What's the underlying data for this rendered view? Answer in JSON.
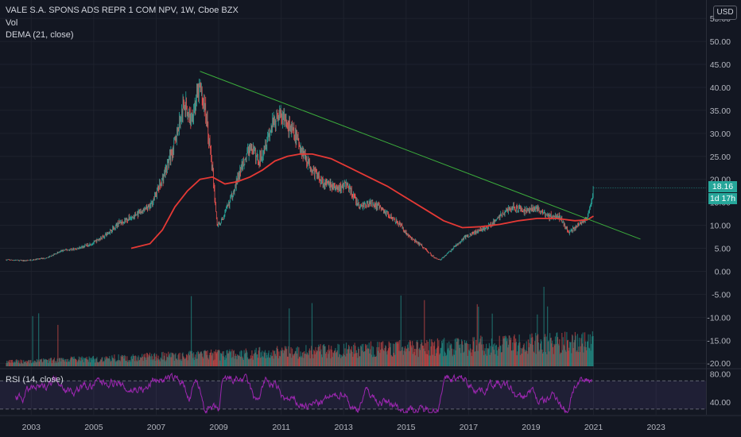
{
  "legend": {
    "symbol": "VALE S.A. SPONS ADS REPR 1 COM NPV, 1W, Cboe BZX",
    "vol": "Vol",
    "dema": "DEMA (21, close)",
    "rsi": "RSI (14, close)"
  },
  "price_axis": {
    "currency": "USD",
    "last_price": "18.16",
    "countdown": "1d 17h"
  },
  "colors": {
    "background": "#131722",
    "up": "#26a69a",
    "down": "#ef5350",
    "trendline": "#3cae3c",
    "dema": "#e53935",
    "rsi": "#9c27b0"
  },
  "chart_data": [
    {
      "type": "candlestick",
      "title": "VALE S.A. SPONS ADS REPR 1 COM NPV, 1W, Cboe BZX",
      "interval": "1W",
      "x_ticks": [
        "2003",
        "2005",
        "2007",
        "2009",
        "2011",
        "2013",
        "2015",
        "2017",
        "2019",
        "2021",
        "2023"
      ],
      "y_ticks": [
        "55.00",
        "50.00",
        "45.00",
        "40.00",
        "35.00",
        "30.00",
        "25.00",
        "20.00",
        "15.00",
        "10.00",
        "5.00",
        "0.00",
        "-5.00",
        "-10.00",
        "-15.00",
        "-20.00"
      ],
      "ylim": [
        -21,
        59
      ],
      "price_path": [
        [
          2002.2,
          2.5
        ],
        [
          2002.8,
          2.3
        ],
        [
          2003.5,
          2.9
        ],
        [
          2004.0,
          4.5
        ],
        [
          2004.5,
          5.0
        ],
        [
          2005.0,
          6.2
        ],
        [
          2005.4,
          8.0
        ],
        [
          2005.8,
          10.5
        ],
        [
          2006.3,
          12.0
        ],
        [
          2006.8,
          14.0
        ],
        [
          2007.2,
          20.0
        ],
        [
          2007.6,
          28.0
        ],
        [
          2007.9,
          37.0
        ],
        [
          2008.1,
          33.0
        ],
        [
          2008.4,
          40.0
        ],
        [
          2008.6,
          34.0
        ],
        [
          2008.8,
          22.0
        ],
        [
          2008.95,
          10.0
        ],
        [
          2009.1,
          11.0
        ],
        [
          2009.4,
          16.0
        ],
        [
          2009.7,
          22.0
        ],
        [
          2010.0,
          27.0
        ],
        [
          2010.3,
          24.0
        ],
        [
          2010.6,
          30.0
        ],
        [
          2010.9,
          34.0
        ],
        [
          2011.1,
          33.0
        ],
        [
          2011.4,
          30.0
        ],
        [
          2011.7,
          26.0
        ],
        [
          2012.0,
          22.0
        ],
        [
          2012.4,
          19.0
        ],
        [
          2012.8,
          18.0
        ],
        [
          2013.1,
          19.0
        ],
        [
          2013.5,
          14.0
        ],
        [
          2013.9,
          15.0
        ],
        [
          2014.3,
          13.0
        ],
        [
          2014.7,
          11.0
        ],
        [
          2015.1,
          7.5
        ],
        [
          2015.5,
          5.5
        ],
        [
          2015.9,
          3.0
        ],
        [
          2016.1,
          2.5
        ],
        [
          2016.5,
          5.0
        ],
        [
          2016.9,
          7.5
        ],
        [
          2017.2,
          8.5
        ],
        [
          2017.6,
          9.5
        ],
        [
          2018.0,
          12.0
        ],
        [
          2018.4,
          14.0
        ],
        [
          2018.8,
          13.0
        ],
        [
          2019.1,
          14.0
        ],
        [
          2019.5,
          12.0
        ],
        [
          2019.9,
          12.0
        ],
        [
          2020.2,
          8.5
        ],
        [
          2020.5,
          10.0
        ],
        [
          2020.8,
          12.0
        ],
        [
          2020.95,
          15.5
        ],
        [
          2021.0,
          18.16
        ]
      ],
      "dema": [
        [
          2006.2,
          5.0
        ],
        [
          2006.8,
          6.0
        ],
        [
          2007.2,
          9.0
        ],
        [
          2007.6,
          14.0
        ],
        [
          2008.0,
          17.5
        ],
        [
          2008.4,
          20.0
        ],
        [
          2008.8,
          20.5
        ],
        [
          2009.2,
          19.0
        ],
        [
          2009.6,
          19.5
        ],
        [
          2010.0,
          20.5
        ],
        [
          2010.4,
          22.0
        ],
        [
          2010.8,
          24.0
        ],
        [
          2011.2,
          25.0
        ],
        [
          2011.6,
          25.5
        ],
        [
          2012.0,
          25.5
        ],
        [
          2012.6,
          24.5
        ],
        [
          2013.2,
          22.5
        ],
        [
          2013.8,
          20.5
        ],
        [
          2014.4,
          18.5
        ],
        [
          2015.0,
          16.0
        ],
        [
          2015.6,
          13.5
        ],
        [
          2016.2,
          11.0
        ],
        [
          2016.8,
          9.5
        ],
        [
          2017.4,
          9.7
        ],
        [
          2018.0,
          10.2
        ],
        [
          2018.6,
          11.0
        ],
        [
          2019.2,
          11.5
        ],
        [
          2019.8,
          11.5
        ],
        [
          2020.4,
          11.0
        ],
        [
          2020.8,
          11.2
        ],
        [
          2021.0,
          12.0
        ]
      ],
      "trendline": [
        [
          2008.4,
          43.5
        ],
        [
          2022.5,
          7.0
        ]
      ],
      "last_price": 18.16
    },
    {
      "type": "bar",
      "title": "Vol",
      "x_range": [
        2002.2,
        2020.95
      ]
    },
    {
      "type": "line",
      "title": "RSI (14, close)",
      "y_ticks": [
        "80.00",
        "40.00"
      ],
      "bands": [
        70,
        30
      ],
      "ylim": [
        22,
        86
      ]
    }
  ]
}
